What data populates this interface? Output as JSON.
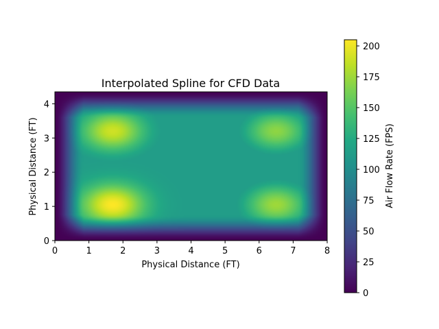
{
  "chart_data": {
    "type": "heatmap",
    "title": "Interpolated Spline for CFD Data",
    "xlabel": "Physical Distance (FT)",
    "ylabel": "Physical Distance (FT)",
    "xlim": [
      0,
      8
    ],
    "ylim": [
      0,
      4.35
    ],
    "xticks": [
      "0",
      "1",
      "2",
      "3",
      "4",
      "5",
      "6",
      "7",
      "8"
    ],
    "yticks": [
      "0",
      "1",
      "2",
      "3",
      "4"
    ],
    "colormap": "viridis",
    "grid": false,
    "colorbar": {
      "label": "Air Flow Rate (FPS)",
      "range": [
        0,
        205
      ],
      "ticks": [
        "0",
        "25",
        "50",
        "75",
        "100",
        "125",
        "150",
        "175",
        "200"
      ]
    },
    "features": [
      {
        "x": 1.7,
        "y": 1.05,
        "value": 205
      },
      {
        "x": 1.7,
        "y": 3.2,
        "value": 190
      },
      {
        "x": 6.5,
        "y": 1.05,
        "value": 175
      },
      {
        "x": 6.5,
        "y": 3.2,
        "value": 170
      },
      {
        "x": 4.4,
        "y": 2.2,
        "value": 105
      }
    ],
    "edge_value": 0
  }
}
